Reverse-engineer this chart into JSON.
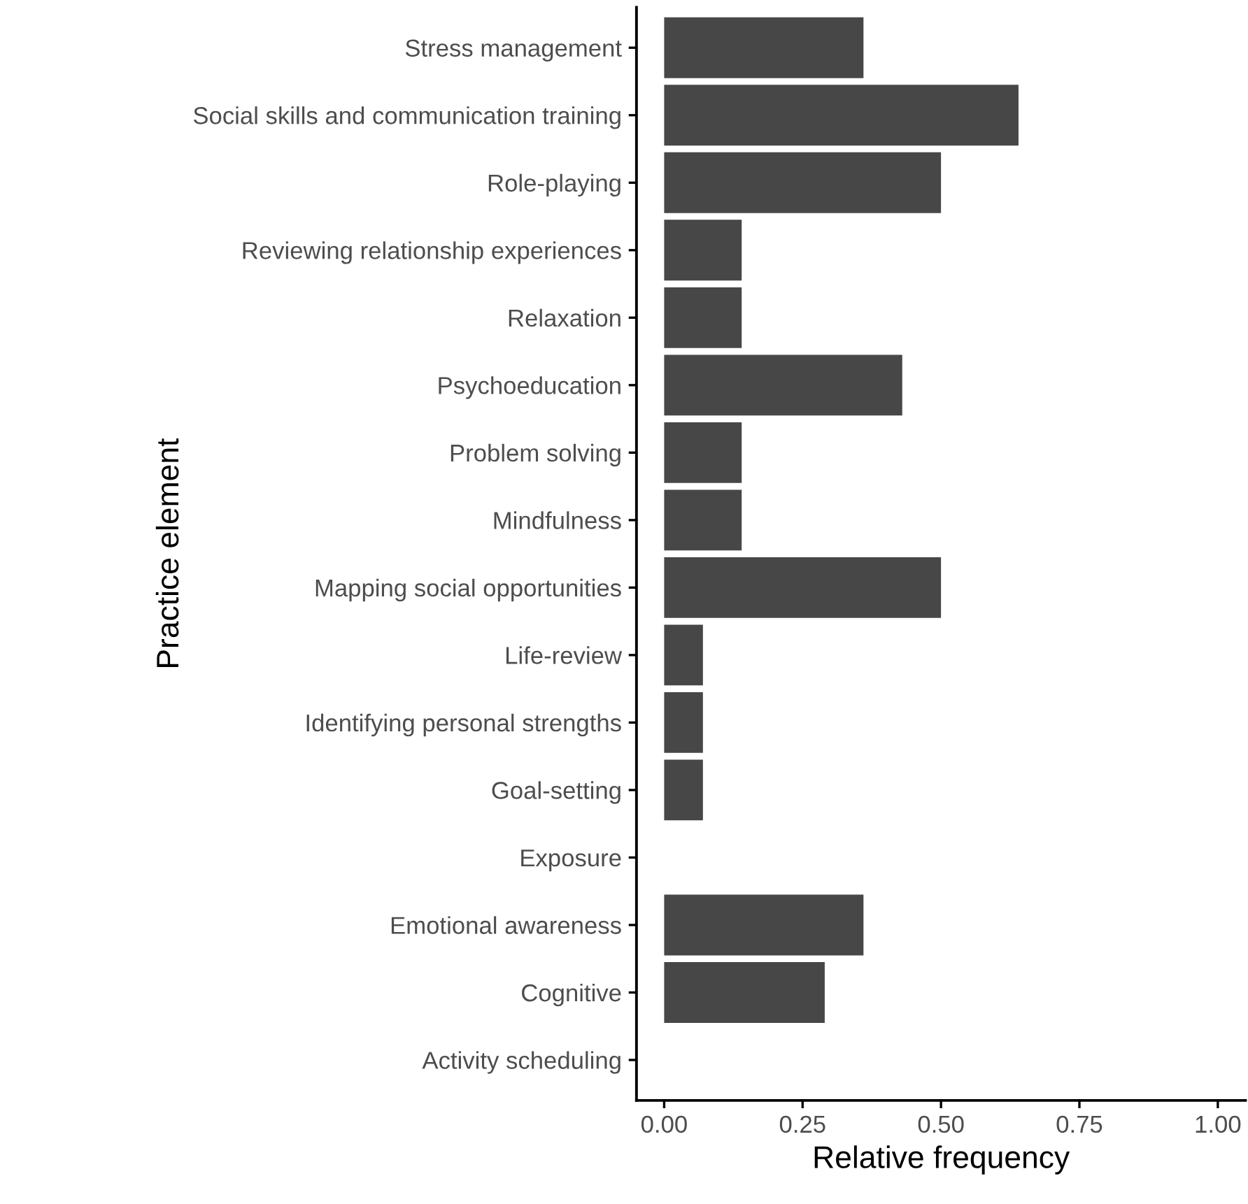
{
  "chart_data": {
    "type": "bar",
    "orientation": "horizontal",
    "xlabel": "Relative frequency",
    "ylabel": "Practice element",
    "categories": [
      "Stress management",
      "Social skills and communication training",
      "Role-playing",
      "Reviewing relationship experiences",
      "Relaxation",
      "Psychoeducation",
      "Problem solving",
      "Mindfulness",
      "Mapping social opportunities",
      "Life-review",
      "Identifying personal strengths",
      "Goal-setting",
      "Exposure",
      "Emotional awareness",
      "Cognitive",
      "Activity scheduling"
    ],
    "values": [
      0.36,
      0.64,
      0.5,
      0.14,
      0.14,
      0.43,
      0.14,
      0.14,
      0.5,
      0.07,
      0.07,
      0.07,
      0,
      0.36,
      0.29,
      0
    ],
    "color": "#474747",
    "xlim": [
      -0.05,
      1.05
    ],
    "xticks": [
      {
        "value": 0,
        "label": "0.00"
      },
      {
        "value": 0.25,
        "label": "0.25"
      },
      {
        "value": 0.5,
        "label": "0.50"
      },
      {
        "value": 0.75,
        "label": "0.75"
      },
      {
        "value": 1,
        "label": "1.00"
      }
    ],
    "grid": false
  }
}
